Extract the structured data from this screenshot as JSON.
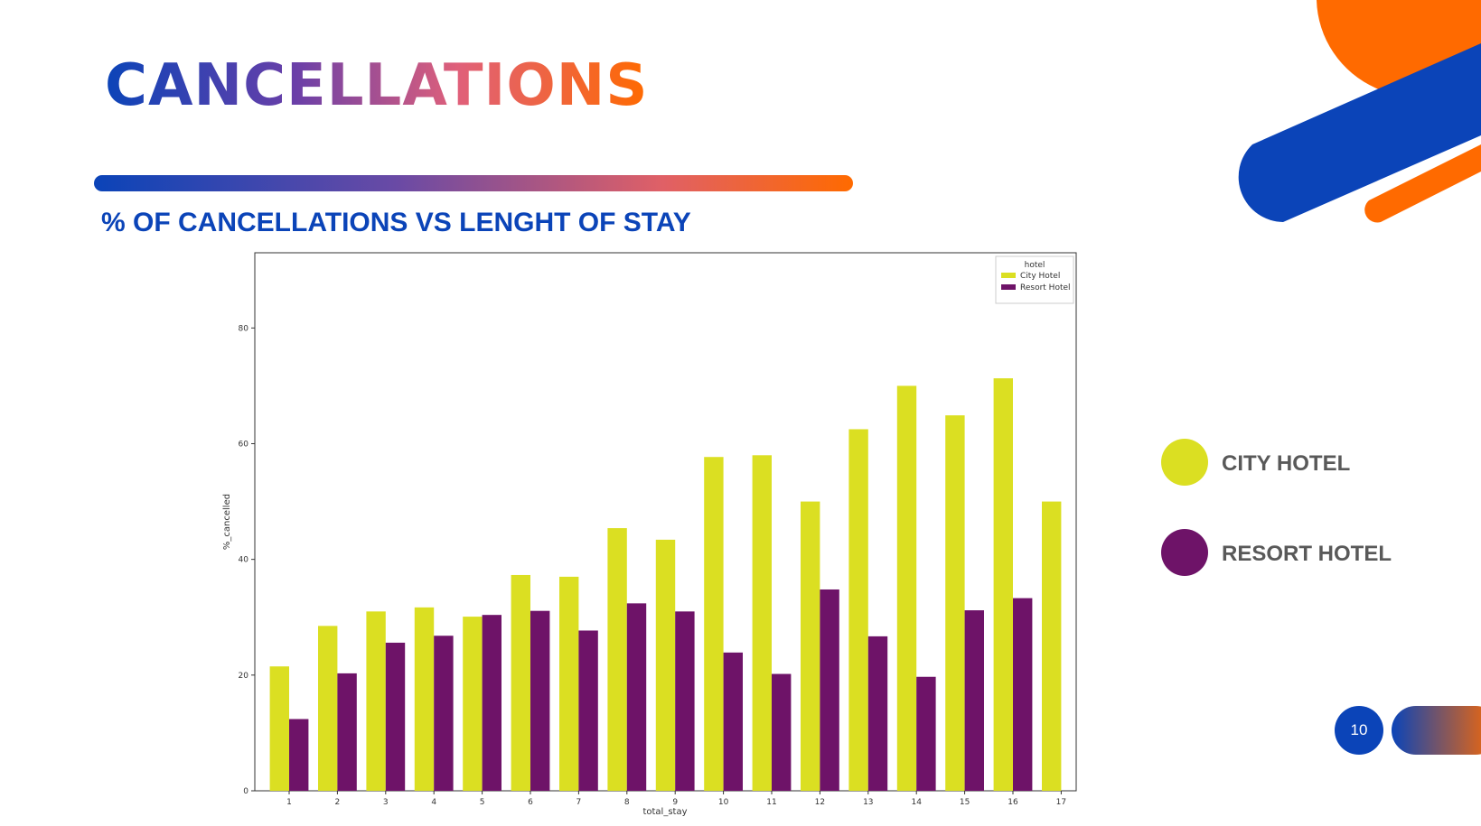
{
  "slide": {
    "title": "CANCELLATIONS",
    "subtitle": "% OF CANCELLATIONS VS LENGHT OF STAY",
    "page_number": "10"
  },
  "side_legend": [
    {
      "label": "CITY HOTEL",
      "color": "#dbdf22"
    },
    {
      "label": "RESORT HOTEL",
      "color": "#6e1368"
    }
  ],
  "colors": {
    "blue": "#0b44b8",
    "orange": "#ff6a00",
    "city": "#dbdf22",
    "resort": "#6e1368"
  },
  "chart_data": {
    "type": "bar",
    "title": "",
    "xlabel": "total_stay",
    "ylabel": "%_cancelled",
    "categories": [
      "1",
      "2",
      "3",
      "4",
      "5",
      "6",
      "7",
      "8",
      "9",
      "10",
      "11",
      "12",
      "13",
      "14",
      "15",
      "16",
      "17"
    ],
    "ylim": [
      0,
      93
    ],
    "yticks": [
      0,
      20,
      40,
      60,
      80
    ],
    "legend_title": "hotel",
    "legend_position": "top-right",
    "grid": false,
    "series": [
      {
        "name": "City Hotel",
        "color": "#dbdf22",
        "values": [
          21.5,
          28.5,
          31,
          31.7,
          30.1,
          37.3,
          37,
          45.4,
          43.4,
          57.7,
          58,
          50,
          62.5,
          70,
          64.9,
          71.3,
          50
        ]
      },
      {
        "name": "Resort Hotel",
        "color": "#6e1368",
        "values": [
          12.4,
          20.3,
          25.6,
          26.8,
          30.4,
          31.1,
          27.7,
          32.4,
          31,
          23.9,
          20.2,
          34.8,
          26.7,
          19.7,
          31.2,
          33.3,
          null
        ]
      }
    ]
  }
}
